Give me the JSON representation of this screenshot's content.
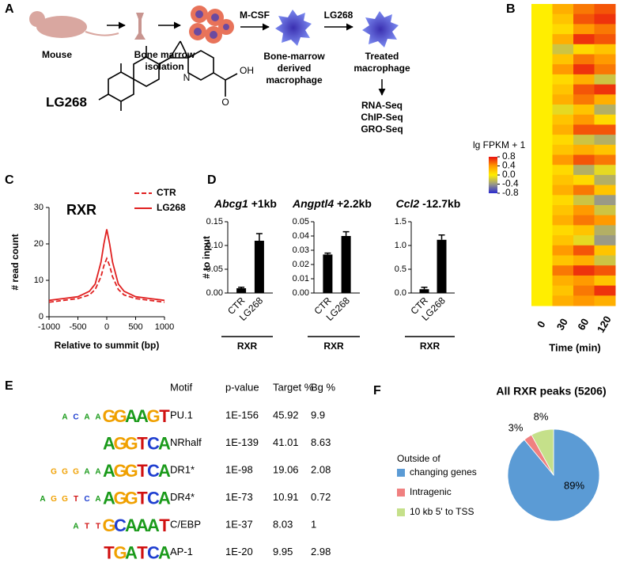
{
  "panels": [
    "A",
    "B",
    "C",
    "D",
    "E",
    "F"
  ],
  "diagram": {
    "mouse": "Mouse",
    "bone_marrow": [
      "Bone marrow",
      "isolation"
    ],
    "mcsf": "M-CSF",
    "lg268": "LG268",
    "bmdm": [
      "Bone-marrow",
      "derived",
      "macrophage"
    ],
    "treated": [
      "Treated",
      "macrophage"
    ],
    "assays": [
      "RNA-Seq",
      "ChIP-Seq",
      "GRO-Seq"
    ],
    "compound": {
      "name": "LG268",
      "atoms": [
        "N",
        "O",
        "OH"
      ]
    }
  },
  "chart_data": [
    {
      "type": "heatmap",
      "zlabel": "lg FPKM + 1",
      "xlabel": "Time (min)",
      "categories": [
        "0",
        "30",
        "60",
        "120"
      ],
      "colors": [
        "#2a2ad0",
        "#9a9a86",
        "#ffee00",
        "#ff9a00",
        "#e81010"
      ],
      "zlim": [
        -0.8,
        0.8
      ],
      "zticks": [
        0.8,
        0.4,
        {
          "value": 0,
          "label": "0.0"
        },
        -0.4,
        -0.8
      ],
      "values": [
        [
          0,
          0.3,
          0.5,
          0.6
        ],
        [
          0,
          0.2,
          0.6,
          0.7
        ],
        [
          0,
          0.1,
          0.4,
          0.5
        ],
        [
          0,
          0.3,
          0.7,
          0.6
        ],
        [
          0,
          -0.2,
          0.1,
          0.2
        ],
        [
          0,
          0.2,
          0.5,
          0.4
        ],
        [
          0,
          0.4,
          0.7,
          0.5
        ],
        [
          0,
          0.1,
          0.3,
          -0.2
        ],
        [
          0,
          0.2,
          0.6,
          0.7
        ],
        [
          0,
          0.3,
          0.5,
          0.3
        ],
        [
          0,
          -0.1,
          0.2,
          -0.3
        ],
        [
          0,
          0.2,
          0.4,
          0.1
        ],
        [
          0,
          0.3,
          0.6,
          0.6
        ],
        [
          0,
          0.1,
          -0.2,
          -0.3
        ],
        [
          0,
          0.2,
          0.3,
          0.2
        ],
        [
          0,
          0.4,
          0.6,
          0.5
        ],
        [
          0,
          0.1,
          -0.3,
          -0.1
        ],
        [
          0,
          0.2,
          0.1,
          -0.3
        ],
        [
          0,
          0.3,
          0.5,
          0.2
        ],
        [
          0,
          0.1,
          -0.2,
          -0.4
        ],
        [
          0,
          0.2,
          0.4,
          -0.2
        ],
        [
          0,
          0.3,
          0.5,
          0.4
        ],
        [
          0,
          0.1,
          0.2,
          -0.3
        ],
        [
          0,
          0.2,
          -0.1,
          -0.4
        ],
        [
          0,
          0.4,
          0.6,
          0.2
        ],
        [
          0,
          0.2,
          0.3,
          -0.2
        ],
        [
          0,
          0.5,
          0.7,
          0.6
        ],
        [
          0,
          0.3,
          0.4,
          0.2
        ],
        [
          0,
          0.2,
          0.5,
          0.7
        ],
        [
          0,
          0.3,
          0.4,
          0.3
        ]
      ]
    },
    {
      "type": "line",
      "title": "RXR",
      "ylabel": "# read count",
      "xlabel": "Relative to summit (bp)",
      "x": [
        -1000,
        -750,
        -500,
        -300,
        -200,
        -100,
        -50,
        0,
        50,
        100,
        200,
        300,
        500,
        750,
        1000
      ],
      "series": [
        {
          "name": "CTR",
          "color": "#e02020",
          "dashed": true,
          "values": [
            4,
            4.5,
            5,
            6,
            7.5,
            11,
            14,
            16,
            14,
            11,
            7.5,
            6,
            5,
            4.5,
            4
          ]
        },
        {
          "name": "LG268",
          "color": "#e02020",
          "dashed": false,
          "values": [
            4.5,
            5,
            5.5,
            7,
            9,
            15,
            20,
            24,
            20,
            15,
            9,
            7,
            5.5,
            5,
            4.5
          ]
        }
      ],
      "xlim": [
        -1000,
        1000
      ],
      "ylim": [
        0,
        30
      ],
      "xticks": [
        -1000,
        -500,
        0,
        500,
        1000
      ],
      "yticks": [
        0,
        10,
        20,
        30
      ]
    },
    {
      "type": "bar",
      "title_gene": "Abcg1",
      "title_suffix": "+1kb",
      "ylabel": "# to input",
      "group_label": "RXR",
      "color": "#000000",
      "categories": [
        "CTR",
        "LG268"
      ],
      "values": [
        0.01,
        0.11
      ],
      "errors": [
        0.002,
        0.015
      ],
      "ylim": [
        0,
        0.15
      ],
      "yticks": [
        {
          "value": 0,
          "label": "0.00"
        },
        {
          "value": 0.05,
          "label": "0.05"
        },
        {
          "value": 0.1,
          "label": "0.10"
        },
        {
          "value": 0.15,
          "label": "0.15"
        }
      ]
    },
    {
      "type": "bar",
      "title_gene": "Angptl4",
      "title_suffix": "+2.2kb",
      "group_label": "RXR",
      "color": "#000000",
      "categories": [
        "CTR",
        "LG268"
      ],
      "values": [
        0.027,
        0.04
      ],
      "errors": [
        0.001,
        0.003
      ],
      "ylim": [
        0,
        0.05
      ],
      "yticks": [
        {
          "value": 0,
          "label": "0.00"
        },
        {
          "value": 0.01,
          "label": "0.01"
        },
        {
          "value": 0.02,
          "label": "0.02"
        },
        {
          "value": 0.03,
          "label": "0.03"
        },
        {
          "value": 0.04,
          "label": "0.04"
        },
        {
          "value": 0.05,
          "label": "0.05"
        }
      ]
    },
    {
      "type": "bar",
      "title_gene": "Ccl2",
      "title_suffix": "-12.7kb",
      "group_label": "RXR",
      "color": "#000000",
      "categories": [
        "CTR",
        "LG268"
      ],
      "values": [
        0.08,
        1.12
      ],
      "errors": [
        0.04,
        0.1
      ],
      "ylim": [
        0,
        1.5
      ],
      "yticks": [
        {
          "value": 0,
          "label": "0.0"
        },
        0.5,
        {
          "value": 1,
          "label": "1.0"
        },
        1.5
      ]
    },
    {
      "type": "pie",
      "title": "All RXR peaks (5206)",
      "categories": [
        "Outside of changing genes",
        "Intragenic",
        "10 kb 5' to TSS"
      ],
      "values": [
        89,
        3,
        8
      ],
      "value_labels": [
        "89%",
        "3%",
        "8%"
      ],
      "colors": [
        "#5b9bd5",
        "#f08080",
        "#c5e08a"
      ]
    }
  ],
  "table": {
    "header": [
      "Motif",
      "p-value",
      "Target %",
      "Bg %"
    ],
    "rows": [
      {
        "logo": [
          "A",
          "C",
          "A",
          "A",
          "G",
          "G",
          "A",
          "A",
          "G",
          "T"
        ],
        "cells": [
          "PU.1",
          "1E-156",
          "45.92",
          "9.9"
        ]
      },
      {
        "logo": [
          "A",
          "G",
          "G",
          "T",
          "C",
          "A"
        ],
        "cells": [
          "NRhalf",
          "1E-139",
          "41.01",
          "8.63"
        ]
      },
      {
        "logo": [
          "G",
          "G",
          "G",
          "A",
          "A",
          "A",
          "G",
          "G",
          "T",
          "C",
          "A"
        ],
        "cells": [
          "DR1*",
          "1E-98",
          "19.06",
          "2.08"
        ]
      },
      {
        "logo": [
          "A",
          "G",
          "G",
          "T",
          "C",
          "A",
          "A",
          "G",
          "G",
          "T",
          "C",
          "A"
        ],
        "cells": [
          "DR4*",
          "1E-73",
          "10.91",
          "0.72"
        ]
      },
      {
        "logo": [
          "A",
          "T",
          "T",
          "G",
          "C",
          "A",
          "A",
          "A",
          "T"
        ],
        "cells": [
          "C/EBP",
          "1E-37",
          "8.03",
          "1"
        ]
      },
      {
        "logo": [
          "T",
          "G",
          "A",
          "T",
          "C",
          "A"
        ],
        "cells": [
          "AP-1",
          "1E-20",
          "9.95",
          "2.98"
        ]
      }
    ]
  }
}
